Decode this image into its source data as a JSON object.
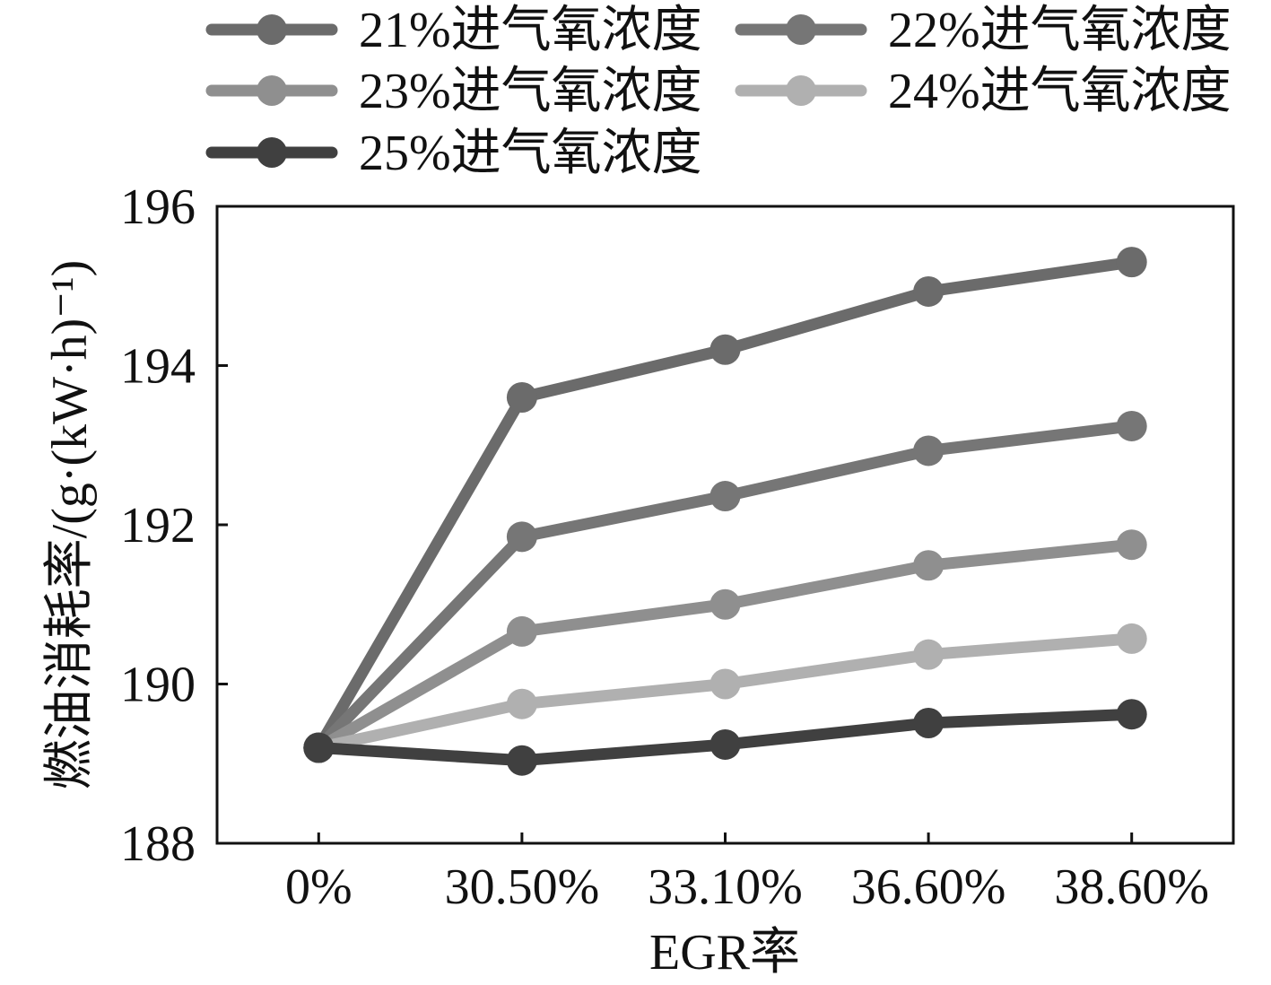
{
  "chart_data": {
    "type": "line",
    "categories": [
      "0%",
      "30.50%",
      "33.10%",
      "36.60%",
      "38.60%"
    ],
    "series": [
      {
        "name": "21%进气氧浓度",
        "values": [
          189.2,
          193.6,
          194.2,
          194.93,
          195.3
        ],
        "color": "#6b6b6b"
      },
      {
        "name": "22%进气氧浓度",
        "values": [
          189.2,
          191.85,
          192.36,
          192.93,
          193.24
        ],
        "color": "#767676"
      },
      {
        "name": "23%进气氧浓度",
        "values": [
          189.2,
          190.66,
          191.0,
          191.49,
          191.75
        ],
        "color": "#8f8f8f"
      },
      {
        "name": "24%进气氧浓度",
        "values": [
          189.2,
          189.75,
          190.0,
          190.37,
          190.57
        ],
        "color": "#b0b0b0"
      },
      {
        "name": "25%进气氧浓度",
        "values": [
          189.2,
          189.04,
          189.24,
          189.51,
          189.62
        ],
        "color": "#404040"
      }
    ],
    "xlabel": "EGR率",
    "ylabel": "燃油消耗率/(g·(kW·h)⁻¹)",
    "ylim": [
      188,
      196
    ],
    "yticks": [
      188,
      190,
      192,
      194,
      196
    ],
    "grid": false,
    "legend": "top"
  }
}
